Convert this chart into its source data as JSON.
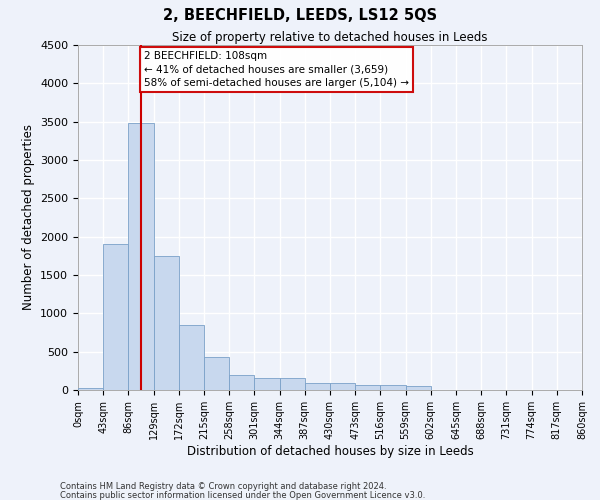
{
  "title": "2, BEECHFIELD, LEEDS, LS12 5QS",
  "subtitle": "Size of property relative to detached houses in Leeds",
  "xlabel": "Distribution of detached houses by size in Leeds",
  "ylabel": "Number of detached properties",
  "bar_color": "#c8d8ee",
  "bar_edgecolor": "#7aa0c8",
  "bin_edges": [
    0,
    43,
    86,
    129,
    172,
    215,
    258,
    301,
    344,
    387,
    430,
    473,
    516,
    559,
    602,
    645,
    688,
    731,
    774,
    817,
    860
  ],
  "bar_values": [
    30,
    1900,
    3480,
    1750,
    850,
    425,
    200,
    155,
    155,
    95,
    95,
    65,
    65,
    55,
    0,
    0,
    0,
    0,
    0,
    0
  ],
  "tick_labels": [
    "0sqm",
    "43sqm",
    "86sqm",
    "129sqm",
    "172sqm",
    "215sqm",
    "258sqm",
    "301sqm",
    "344sqm",
    "387sqm",
    "430sqm",
    "473sqm",
    "516sqm",
    "559sqm",
    "602sqm",
    "645sqm",
    "688sqm",
    "731sqm",
    "774sqm",
    "817sqm",
    "860sqm"
  ],
  "ylim": [
    0,
    4500
  ],
  "yticks": [
    0,
    500,
    1000,
    1500,
    2000,
    2500,
    3000,
    3500,
    4000,
    4500
  ],
  "property_size": 108,
  "annotation_title": "2 BEECHFIELD: 108sqm",
  "annotation_line1": "← 41% of detached houses are smaller (3,659)",
  "annotation_line2": "58% of semi-detached houses are larger (5,104) →",
  "vline_color": "#cc0000",
  "annotation_box_edgecolor": "#cc0000",
  "footer_line1": "Contains HM Land Registry data © Crown copyright and database right 2024.",
  "footer_line2": "Contains public sector information licensed under the Open Government Licence v3.0.",
  "background_color": "#eef2fa",
  "grid_color": "#d8e0f0"
}
